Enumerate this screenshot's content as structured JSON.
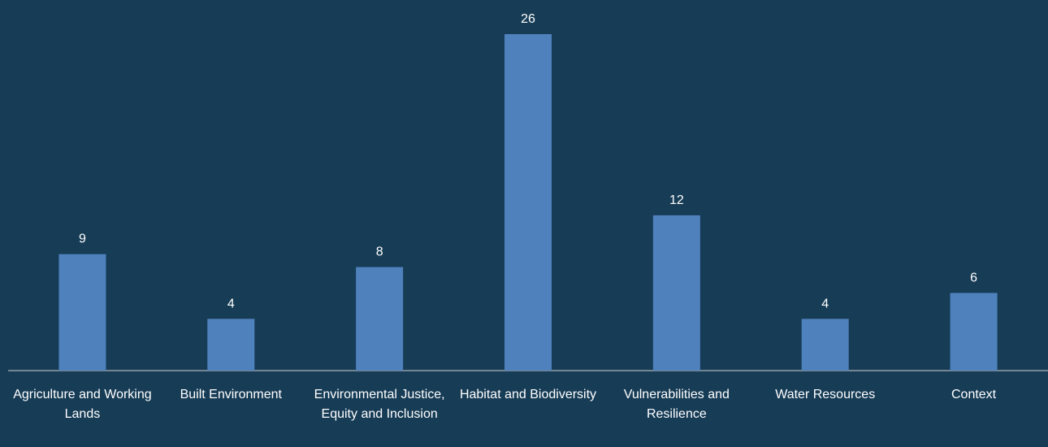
{
  "chart_data": {
    "type": "bar",
    "categories": [
      "Agriculture and Working Lands",
      "Built Environment",
      "Environmental Justice, Equity and Inclusion",
      "Habitat and Biodiversity",
      "Vulnerabilities and Resilience",
      "Water Resources",
      "Context"
    ],
    "values": [
      9,
      4,
      8,
      26,
      12,
      4,
      6
    ],
    "color": "#4f81bd"
  }
}
